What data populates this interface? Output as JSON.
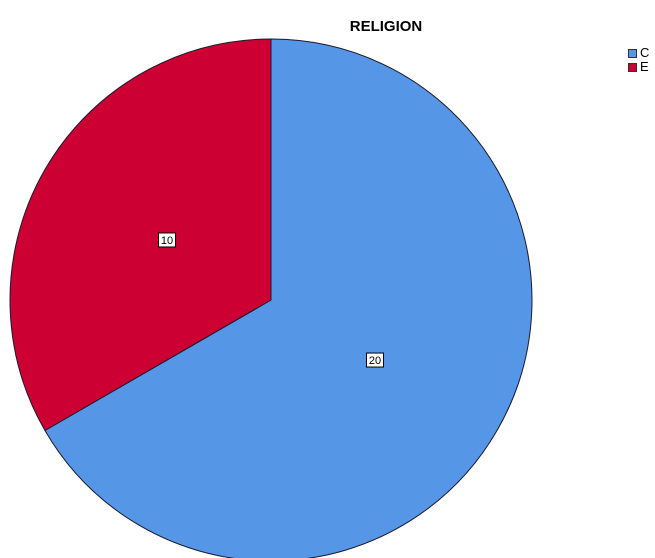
{
  "chart_data": {
    "type": "pie",
    "title": "RELIGION",
    "slices": [
      {
        "label": "C",
        "value": 20,
        "color": "#5596E6",
        "value_label": "20"
      },
      {
        "label": "E",
        "value": 10,
        "color": "#CC0032",
        "value_label": "10"
      }
    ],
    "legend_position": "top-right",
    "start_angle_deg": 0,
    "direction": "clockwise"
  }
}
